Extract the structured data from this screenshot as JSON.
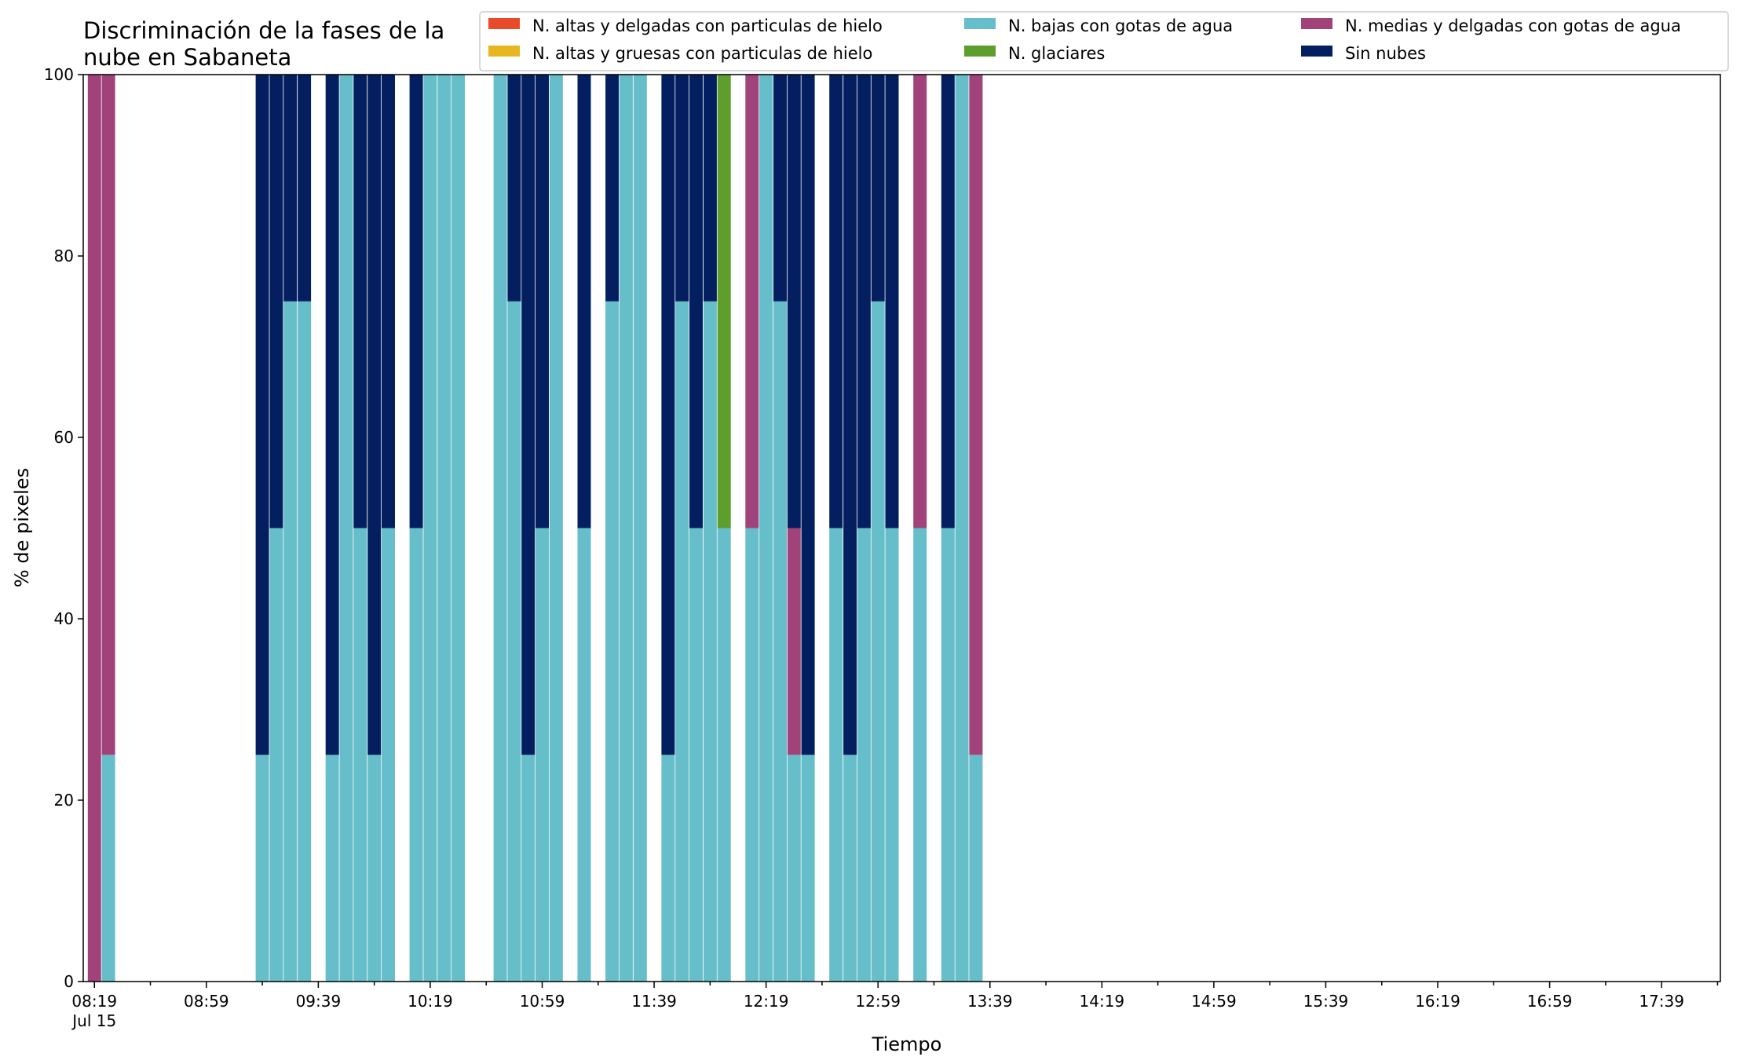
{
  "chart_data": {
    "type": "bar",
    "stacked": true,
    "title_lines": [
      "Discriminación de la fases de la",
      "nube en Sabaneta"
    ],
    "xlabel": "Tiempo",
    "ylabel": "% de pixeles",
    "ylim": [
      0,
      100
    ],
    "yticks": [
      "0",
      "20",
      "40",
      "60",
      "80",
      "100"
    ],
    "xtick_labels": [
      "08:19",
      "08:59",
      "09:39",
      "10:19",
      "10:59",
      "11:39",
      "12:19",
      "12:59",
      "13:39",
      "14:19",
      "14:59",
      "15:39",
      "16:19",
      "16:59",
      "17:39"
    ],
    "x_date_label": "Jul 15",
    "legend_position": "top-right",
    "grid": false,
    "series": [
      {
        "name": "N. altas y delgadas con particulas de hielo",
        "color": "#e84a2a"
      },
      {
        "name": "N. altas y gruesas con particulas de hielo",
        "color": "#e6b71e"
      },
      {
        "name": "N. bajas con gotas de agua",
        "color": "#65bec9"
      },
      {
        "name": "N. glaciares",
        "color": "#5d9e2c"
      },
      {
        "name": "N. medias y delgadas con gotas de agua",
        "color": "#a1437a"
      },
      {
        "name": "Sin nubes",
        "color": "#031f5f"
      }
    ],
    "bars": [
      {
        "time": "08:19",
        "values": [
          0,
          0,
          0,
          0,
          100,
          0
        ]
      },
      {
        "time": "08:24",
        "values": [
          0,
          0,
          25,
          0,
          75,
          0
        ]
      },
      {
        "time": "08:49",
        "values": [
          0,
          0,
          0,
          0,
          0,
          0
        ]
      },
      {
        "time": "09:19",
        "values": [
          0,
          0,
          25,
          0,
          0,
          75
        ]
      },
      {
        "time": "09:24",
        "values": [
          0,
          0,
          50,
          0,
          0,
          50
        ]
      },
      {
        "time": "09:29",
        "values": [
          0,
          0,
          75,
          0,
          0,
          25
        ]
      },
      {
        "time": "09:34",
        "values": [
          0,
          0,
          75,
          0,
          0,
          25
        ]
      },
      {
        "time": "09:44",
        "values": [
          0,
          0,
          25,
          0,
          0,
          75
        ]
      },
      {
        "time": "09:49",
        "values": [
          0,
          0,
          100,
          0,
          0,
          0
        ]
      },
      {
        "time": "09:54",
        "values": [
          0,
          0,
          50,
          0,
          0,
          50
        ]
      },
      {
        "time": "09:59",
        "values": [
          0,
          0,
          25,
          0,
          0,
          75
        ]
      },
      {
        "time": "10:04",
        "values": [
          0,
          0,
          50,
          0,
          0,
          50
        ]
      },
      {
        "time": "10:14",
        "values": [
          0,
          0,
          50,
          0,
          0,
          50
        ]
      },
      {
        "time": "10:19",
        "values": [
          0,
          0,
          100,
          0,
          0,
          0
        ]
      },
      {
        "time": "10:24",
        "values": [
          0,
          0,
          100,
          0,
          0,
          0
        ]
      },
      {
        "time": "10:29",
        "values": [
          0,
          0,
          100,
          0,
          0,
          0
        ]
      },
      {
        "time": "10:44",
        "values": [
          0,
          0,
          100,
          0,
          0,
          0
        ]
      },
      {
        "time": "10:49",
        "values": [
          0,
          0,
          75,
          0,
          0,
          25
        ]
      },
      {
        "time": "10:54",
        "values": [
          0,
          0,
          25,
          0,
          0,
          75
        ]
      },
      {
        "time": "10:59",
        "values": [
          0,
          0,
          50,
          0,
          0,
          50
        ]
      },
      {
        "time": "11:04",
        "values": [
          0,
          0,
          100,
          0,
          0,
          0
        ]
      },
      {
        "time": "11:14",
        "values": [
          0,
          0,
          50,
          0,
          0,
          50
        ]
      },
      {
        "time": "11:24",
        "values": [
          0,
          0,
          75,
          0,
          0,
          25
        ]
      },
      {
        "time": "11:29",
        "values": [
          0,
          0,
          100,
          0,
          0,
          0
        ]
      },
      {
        "time": "11:34",
        "values": [
          0,
          0,
          100,
          0,
          0,
          0
        ]
      },
      {
        "time": "11:44",
        "values": [
          0,
          0,
          25,
          0,
          0,
          75
        ]
      },
      {
        "time": "11:49",
        "values": [
          0,
          0,
          75,
          0,
          0,
          25
        ]
      },
      {
        "time": "11:54",
        "values": [
          0,
          0,
          50,
          0,
          0,
          50
        ]
      },
      {
        "time": "11:59",
        "values": [
          0,
          0,
          75,
          0,
          0,
          25
        ]
      },
      {
        "time": "12:04",
        "values": [
          0,
          0,
          50,
          50,
          0,
          0
        ]
      },
      {
        "time": "12:14",
        "values": [
          0,
          0,
          50,
          0,
          50,
          0
        ]
      },
      {
        "time": "12:19",
        "values": [
          0,
          0,
          100,
          0,
          0,
          0
        ]
      },
      {
        "time": "12:24",
        "values": [
          0,
          0,
          75,
          0,
          0,
          25
        ]
      },
      {
        "time": "12:29",
        "values": [
          0,
          0,
          25,
          0,
          25,
          50
        ]
      },
      {
        "time": "12:34",
        "values": [
          0,
          0,
          25,
          0,
          0,
          75
        ]
      },
      {
        "time": "12:44",
        "values": [
          0,
          0,
          50,
          0,
          0,
          50
        ]
      },
      {
        "time": "12:49",
        "values": [
          0,
          0,
          25,
          0,
          0,
          75
        ]
      },
      {
        "time": "12:54",
        "values": [
          0,
          0,
          50,
          0,
          0,
          50
        ]
      },
      {
        "time": "12:59",
        "values": [
          0,
          0,
          75,
          0,
          0,
          25
        ]
      },
      {
        "time": "13:04",
        "values": [
          0,
          0,
          50,
          0,
          0,
          50
        ]
      },
      {
        "time": "13:14",
        "values": [
          0,
          0,
          50,
          0,
          50,
          0
        ]
      },
      {
        "time": "13:24",
        "values": [
          0,
          0,
          50,
          0,
          0,
          50
        ]
      },
      {
        "time": "13:29",
        "values": [
          0,
          0,
          100,
          0,
          0,
          0
        ]
      },
      {
        "time": "13:34",
        "values": [
          0,
          0,
          25,
          0,
          75,
          0
        ]
      }
    ]
  }
}
